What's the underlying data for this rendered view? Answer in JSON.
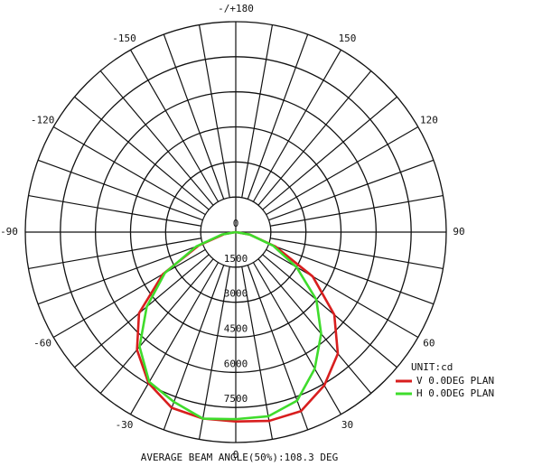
{
  "chart_data": {
    "type": "polar",
    "theta": [
      -90,
      -80,
      -70,
      -60,
      -50,
      -40,
      -30,
      -20,
      -10,
      0,
      10,
      20,
      30,
      40,
      50,
      60,
      70,
      80,
      90
    ],
    "series": [
      {
        "name": "V 0.0DEG PLAN",
        "color": "#d81e1e",
        "values": [
          0,
          500,
          1700,
          3600,
          5400,
          6570,
          7460,
          8000,
          8100,
          8100,
          8200,
          8150,
          7570,
          6790,
          5500,
          3800,
          1800,
          600,
          0
        ]
      },
      {
        "name": "H 0.0DEG PLAN",
        "color": "#3fdc2c",
        "values": [
          0,
          600,
          1800,
          3500,
          4970,
          6400,
          7400,
          7730,
          8100,
          8000,
          8000,
          7670,
          6750,
          5680,
          4500,
          3000,
          1700,
          600,
          0
        ]
      }
    ],
    "rlim": [
      0,
      9000
    ],
    "rticks": [
      0,
      1500,
      3000,
      4500,
      6000,
      7500
    ],
    "thetaticks": [
      -150,
      -120,
      -90,
      -60,
      -30,
      0,
      30,
      60,
      90,
      120,
      150,
      {
        "value": 180,
        "label": "-/+180"
      }
    ],
    "thetagrid_step": 10,
    "legend_title": "UNIT:cd",
    "annotation": "AVERAGE BEAM ANGLE(50%):108.3 DEG"
  }
}
